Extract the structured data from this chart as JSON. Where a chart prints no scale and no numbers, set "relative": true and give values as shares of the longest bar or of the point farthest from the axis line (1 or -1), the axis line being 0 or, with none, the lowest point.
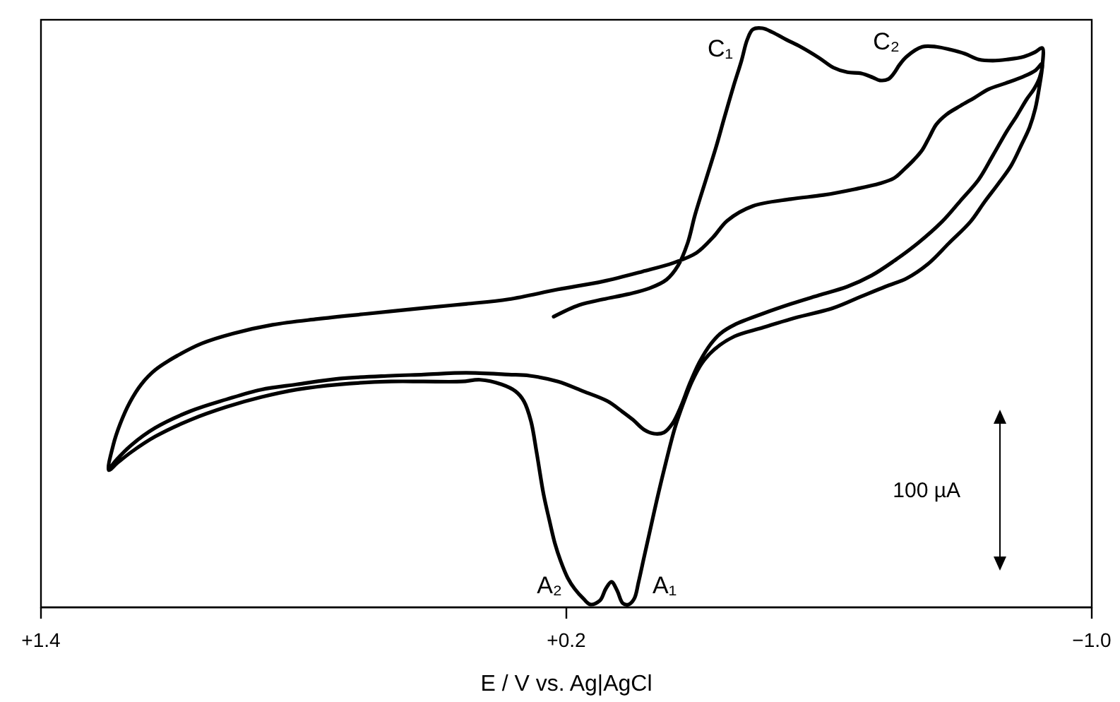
{
  "chart_data": {
    "type": "line",
    "relative": true,
    "xlabel": "E / V vs. Ag|AgCl",
    "xlim": [
      1.4,
      -1.0
    ],
    "xticks": [
      {
        "value": 1.4,
        "label": "+1.4"
      },
      {
        "value": 0.2,
        "label": "+0.2"
      },
      {
        "value": -1.0,
        "label": "−1.0"
      }
    ],
    "series": [
      {
        "color": "#000000",
        "x": [
          0.229,
          0.171,
          0.116,
          0.058,
          0.01,
          -0.029,
          -0.055,
          -0.077,
          -0.094,
          -0.119,
          -0.142,
          -0.161,
          -0.181,
          -0.2,
          -0.213,
          -0.226,
          -0.248,
          -0.271,
          -0.303,
          -0.335,
          -0.377,
          -0.41,
          -0.442,
          -0.474,
          -0.5,
          -0.516,
          -0.535,
          -0.548,
          -0.561,
          -0.577,
          -0.613,
          -0.645,
          -0.677,
          -0.71,
          -0.742,
          -0.774,
          -0.806,
          -0.845,
          -0.871,
          -0.887,
          -0.887,
          -0.881,
          -0.871,
          -0.858,
          -0.839,
          -0.816,
          -0.787,
          -0.755,
          -0.723,
          -0.674,
          -0.626,
          -0.577,
          -0.529,
          -0.474,
          -0.41,
          -0.313,
          -0.248,
          -0.184,
          -0.139,
          -0.11,
          -0.087,
          -0.068,
          -0.048,
          -0.023,
          -0.006,
          0.01,
          0.023,
          0.035,
          0.045,
          0.058,
          0.071,
          0.084,
          0.097,
          0.11,
          0.123,
          0.145,
          0.161,
          0.181,
          0.197,
          0.213,
          0.226,
          0.239,
          0.252,
          0.268,
          0.281,
          0.297,
          0.316,
          0.348,
          0.397,
          0.439,
          0.526,
          0.6,
          0.719,
          0.816,
          0.897,
          0.977,
          1.058,
          1.139,
          1.194,
          1.226,
          1.245,
          1.235,
          1.219,
          1.197,
          1.171,
          1.139,
          1.09,
          1.032,
          0.961,
          0.871,
          0.768,
          0.655,
          0.526,
          0.429,
          0.332,
          0.219,
          0.116,
          0.026,
          -0.045,
          -0.097,
          -0.135,
          -0.168,
          -0.226,
          -0.313,
          -0.387,
          -0.458,
          -0.516,
          -0.548,
          -0.571,
          -0.594,
          -0.613,
          -0.629,
          -0.645,
          -0.668,
          -0.7,
          -0.732,
          -0.765,
          -0.803,
          -0.845,
          -0.871,
          -0.887,
          -0.881,
          -0.868,
          -0.852,
          -0.829,
          -0.806,
          -0.774,
          -0.742,
          -0.7,
          -0.658,
          -0.603,
          -0.548,
          -0.497,
          -0.442,
          -0.377,
          -0.313,
          -0.248,
          -0.184,
          -0.152,
          -0.129,
          -0.103,
          -0.081,
          -0.061,
          -0.042,
          -0.023,
          0.0,
          0.023,
          0.048,
          0.074,
          0.106,
          0.161,
          0.219,
          0.284,
          0.332,
          0.429,
          0.526,
          0.6,
          0.719,
          0.816,
          0.897,
          0.977,
          1.058,
          1.139,
          1.194,
          1.226,
          1.242
        ],
        "values": [
          0.502,
          0.522,
          0.532,
          0.541,
          0.551,
          0.566,
          0.59,
          0.629,
          0.678,
          0.739,
          0.795,
          0.846,
          0.898,
          0.944,
          0.98,
          0.998,
          1.0,
          0.993,
          0.98,
          0.968,
          0.949,
          0.932,
          0.924,
          0.922,
          0.915,
          0.91,
          0.912,
          0.922,
          0.937,
          0.951,
          0.968,
          0.968,
          0.963,
          0.956,
          0.946,
          0.944,
          0.946,
          0.951,
          0.959,
          0.966,
          0.934,
          0.902,
          0.861,
          0.829,
          0.798,
          0.763,
          0.732,
          0.7,
          0.666,
          0.629,
          0.593,
          0.568,
          0.554,
          0.537,
          0.517,
          0.498,
          0.483,
          0.468,
          0.446,
          0.422,
          0.39,
          0.354,
          0.31,
          0.237,
          0.183,
          0.129,
          0.085,
          0.044,
          0.015,
          0.005,
          0.007,
          0.029,
          0.044,
          0.032,
          0.012,
          0.005,
          0.015,
          0.032,
          0.051,
          0.08,
          0.11,
          0.151,
          0.195,
          0.268,
          0.322,
          0.356,
          0.373,
          0.385,
          0.393,
          0.39,
          0.39,
          0.39,
          0.385,
          0.376,
          0.363,
          0.346,
          0.324,
          0.295,
          0.268,
          0.249,
          0.237,
          0.28,
          0.317,
          0.354,
          0.385,
          0.41,
          0.434,
          0.456,
          0.473,
          0.488,
          0.498,
          0.507,
          0.517,
          0.524,
          0.532,
          0.549,
          0.563,
          0.58,
          0.595,
          0.612,
          0.639,
          0.668,
          0.693,
          0.705,
          0.712,
          0.722,
          0.732,
          0.741,
          0.756,
          0.773,
          0.79,
          0.812,
          0.834,
          0.851,
          0.866,
          0.88,
          0.895,
          0.905,
          0.917,
          0.927,
          0.939,
          0.915,
          0.895,
          0.878,
          0.849,
          0.822,
          0.78,
          0.739,
          0.702,
          0.666,
          0.629,
          0.598,
          0.573,
          0.554,
          0.539,
          0.524,
          0.507,
          0.488,
          0.473,
          0.454,
          0.422,
          0.385,
          0.346,
          0.317,
          0.302,
          0.3,
          0.307,
          0.324,
          0.339,
          0.356,
          0.373,
          0.39,
          0.4,
          0.402,
          0.405,
          0.402,
          0.4,
          0.395,
          0.385,
          0.376,
          0.359,
          0.339,
          0.31,
          0.28,
          0.256,
          0.241
        ]
      }
    ],
    "annotations": [
      "100 µA",
      {
        "text": "C₁",
        "x": -0.226,
        "y": 0.998
      },
      {
        "text": "C₂",
        "x": -0.613,
        "y": 0.968
      },
      {
        "text": "A₂",
        "x": 0.145,
        "y": 0.005
      },
      {
        "text": "A₁",
        "x": 0.058,
        "y": 0.005
      }
    ]
  }
}
